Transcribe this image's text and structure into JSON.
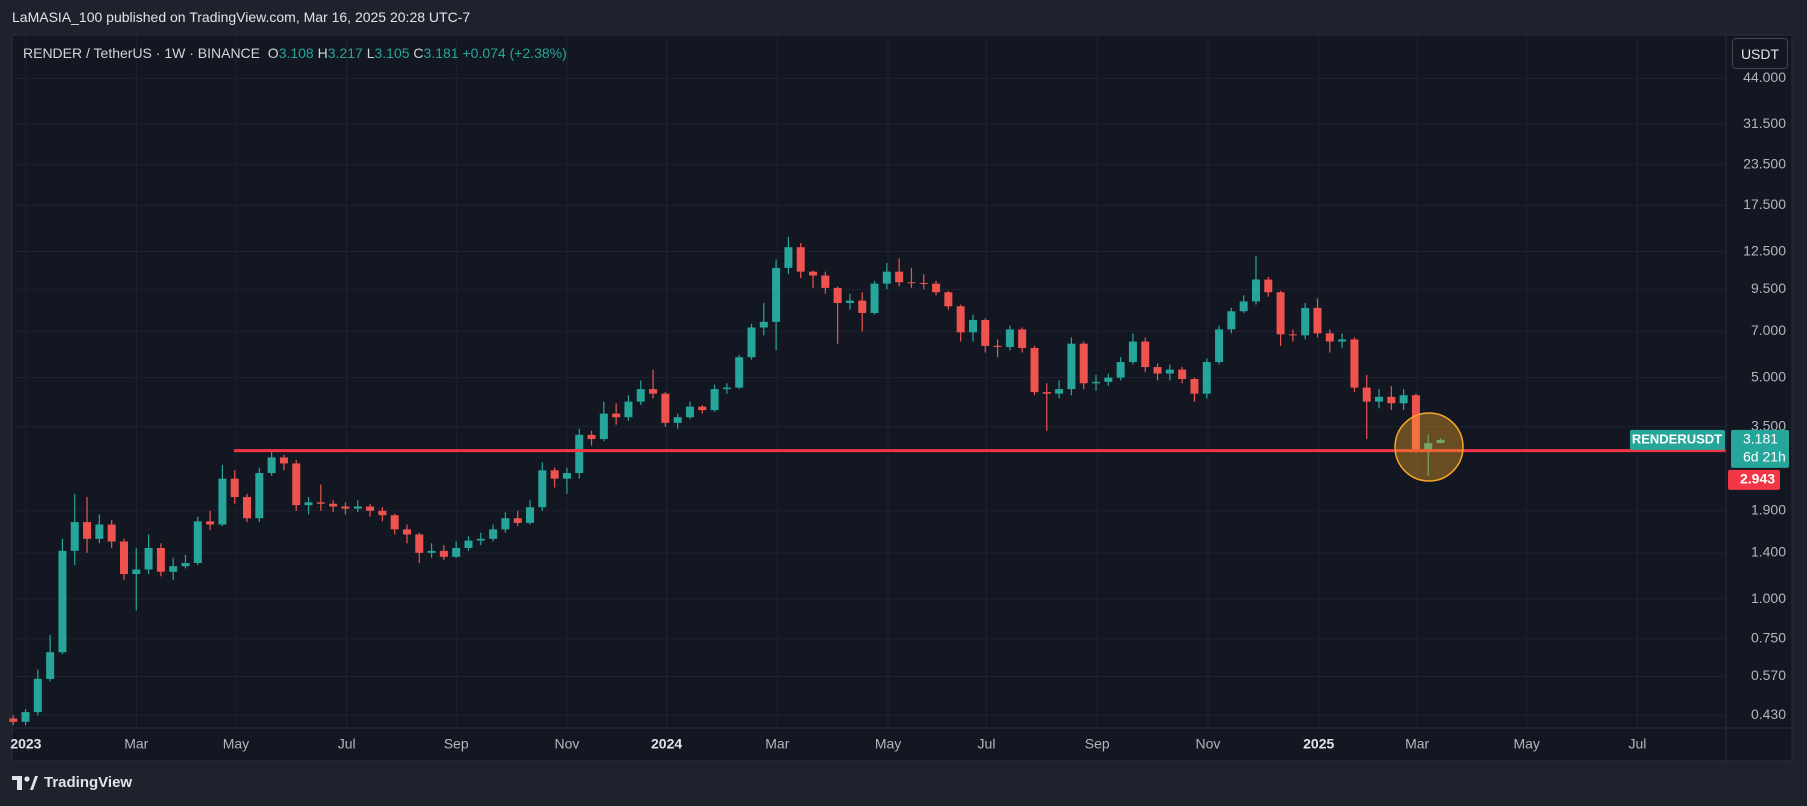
{
  "header": {
    "published": "LaMASIA_100 published on TradingView.com, Mar 16, 2025 20:28 UTC-7"
  },
  "footer": {
    "brand": "TradingView"
  },
  "chart_data": {
    "type": "candlestick",
    "symbol": "RENDER / TetherUS · 1W · BINANCE",
    "ohlc_labels": [
      "O",
      "H",
      "L",
      "C"
    ],
    "change": "+0.074 (+2.38%)",
    "countdown": "6d 21h",
    "currency": "USDT",
    "log_y": true,
    "grid": true,
    "ylim": [
      0.392,
      60.3
    ],
    "yticks": [
      {
        "value": 44,
        "label": "44.000"
      },
      {
        "value": 31.5,
        "label": "31.500"
      },
      {
        "value": 23.5,
        "label": "23.500"
      },
      {
        "value": 17.5,
        "label": "17.500"
      },
      {
        "value": 12.5,
        "label": "12.500"
      },
      {
        "value": 9.5,
        "label": "9.500"
      },
      {
        "value": 7,
        "label": "7.000"
      },
      {
        "value": 5,
        "label": "5.000"
      },
      {
        "value": 3.5,
        "label": "3.500"
      },
      {
        "value": 1.9,
        "label": "1.900"
      },
      {
        "value": 1.4,
        "label": "1.400"
      },
      {
        "value": 1,
        "label": "1.000"
      },
      {
        "value": 0.75,
        "label": "0.750"
      },
      {
        "value": 0.57,
        "label": "0.570"
      },
      {
        "value": 0.43,
        "label": "0.430"
      }
    ],
    "xlim": [
      -0.1,
      139.2
    ],
    "xticks": [
      {
        "value": 1.03,
        "label": "2023"
      },
      {
        "value": 10.0,
        "label": "Mar"
      },
      {
        "value": 18.1,
        "label": "May"
      },
      {
        "value": 27.1,
        "label": "Jul"
      },
      {
        "value": 36.0,
        "label": "Sep"
      },
      {
        "value": 45.0,
        "label": "Nov"
      },
      {
        "value": 53.1,
        "label": "2024"
      },
      {
        "value": 62.1,
        "label": "Mar"
      },
      {
        "value": 71.1,
        "label": "May"
      },
      {
        "value": 79.1,
        "label": "Jul"
      },
      {
        "value": 88.1,
        "label": "Sep"
      },
      {
        "value": 97.1,
        "label": "Nov"
      },
      {
        "value": 106.1,
        "label": "2025"
      },
      {
        "value": 114.1,
        "label": "Mar"
      },
      {
        "value": 123.0,
        "label": "May"
      },
      {
        "value": 132.0,
        "label": "Jul"
      }
    ],
    "hline": {
      "value": 2.943,
      "color": "#f23645"
    },
    "series": [
      {
        "name": "RENDERUSDT",
        "up_color": "#26a69a",
        "down_color": "#ef5350",
        "open": [
          0.42,
          0.41,
          0.44,
          0.56,
          0.68,
          1.42,
          1.75,
          1.55,
          1.72,
          1.52,
          1.2,
          1.24,
          1.45,
          1.22,
          1.27,
          1.3,
          1.76,
          1.72,
          2.4,
          2.1,
          1.8,
          2.5,
          2.8,
          2.68,
          1.98,
          2.02,
          2.0,
          1.96,
          1.93,
          1.96,
          1.9,
          1.84,
          1.66,
          1.6,
          1.4,
          1.42,
          1.36,
          1.45,
          1.53,
          1.55,
          1.66,
          1.8,
          1.74,
          1.95,
          2.55,
          2.4,
          2.5,
          3.3,
          3.2,
          3.85,
          3.75,
          4.2,
          4.6,
          4.45,
          3.6,
          3.75,
          4.05,
          3.95,
          4.6,
          4.65,
          5.8,
          7.2,
          7.5,
          11.1,
          12.9,
          10.8,
          10.5,
          9.6,
          8.6,
          8.75,
          8.0,
          9.9,
          10.8,
          10.0,
          9.95,
          9.9,
          9.3,
          8.4,
          6.95,
          7.6,
          6.3,
          6.25,
          7.1,
          6.2,
          4.5,
          4.45,
          4.6,
          6.4,
          4.8,
          4.85,
          5.0,
          5.6,
          6.5,
          5.4,
          5.15,
          5.3,
          4.95,
          4.45,
          5.6,
          7.1,
          8.1,
          8.7,
          10.2,
          9.3,
          6.85,
          6.8,
          8.3,
          6.9,
          6.5,
          6.6,
          4.65,
          4.2,
          4.35,
          4.15,
          4.4,
          2.97,
          3.108
        ],
        "high": [
          0.43,
          0.45,
          0.6,
          0.77,
          1.55,
          2.15,
          2.1,
          1.85,
          1.78,
          1.55,
          1.45,
          1.6,
          1.5,
          1.35,
          1.38,
          1.82,
          1.9,
          2.65,
          2.55,
          2.15,
          2.6,
          2.95,
          2.85,
          2.75,
          2.1,
          2.3,
          2.05,
          2.02,
          2.05,
          2.0,
          1.95,
          1.86,
          1.72,
          1.62,
          1.5,
          1.48,
          1.52,
          1.58,
          1.62,
          1.72,
          1.88,
          1.9,
          2.05,
          2.7,
          2.6,
          2.6,
          3.45,
          3.4,
          4.2,
          4.15,
          4.4,
          4.9,
          5.3,
          4.5,
          3.85,
          4.2,
          4.1,
          4.75,
          4.8,
          5.9,
          7.4,
          8.6,
          11.8,
          13.9,
          13.3,
          10.9,
          10.8,
          9.7,
          9.2,
          9.3,
          10.1,
          11.5,
          11.9,
          11.1,
          10.6,
          10.1,
          9.4,
          8.5,
          7.9,
          7.7,
          6.6,
          7.3,
          7.2,
          6.3,
          4.8,
          4.9,
          6.7,
          6.5,
          5.1,
          5.15,
          5.8,
          6.9,
          6.7,
          5.55,
          5.5,
          5.4,
          5.0,
          5.75,
          7.3,
          8.3,
          9.1,
          12.1,
          10.4,
          9.4,
          7.1,
          8.6,
          8.9,
          7.1,
          6.9,
          6.7,
          5.1,
          4.6,
          4.7,
          4.6,
          4.45,
          3.3,
          3.217
        ],
        "low": [
          0.4,
          0.4,
          0.43,
          0.55,
          0.67,
          1.28,
          1.4,
          1.5,
          1.45,
          1.15,
          0.92,
          1.2,
          1.18,
          1.15,
          1.25,
          1.28,
          1.65,
          1.7,
          2.0,
          1.75,
          1.75,
          2.45,
          2.55,
          1.9,
          1.85,
          1.9,
          1.88,
          1.85,
          1.88,
          1.82,
          1.76,
          1.6,
          1.5,
          1.3,
          1.35,
          1.33,
          1.35,
          1.42,
          1.48,
          1.52,
          1.62,
          1.7,
          1.72,
          1.9,
          2.25,
          2.15,
          2.4,
          3.05,
          3.15,
          3.55,
          3.65,
          4.1,
          4.3,
          3.5,
          3.45,
          3.7,
          3.85,
          3.9,
          4.45,
          4.6,
          5.7,
          6.8,
          6.1,
          10.6,
          10.3,
          9.6,
          9.2,
          6.4,
          8.2,
          7.0,
          7.9,
          9.5,
          9.7,
          9.6,
          9.5,
          9.1,
          8.2,
          6.5,
          6.5,
          6.0,
          5.8,
          6.1,
          6.0,
          4.4,
          3.4,
          4.3,
          4.4,
          4.6,
          4.55,
          4.7,
          4.9,
          5.5,
          5.2,
          4.9,
          4.9,
          4.8,
          4.2,
          4.3,
          5.5,
          6.9,
          8.0,
          8.5,
          9.0,
          6.3,
          6.5,
          6.6,
          6.7,
          6.0,
          6.2,
          4.5,
          3.2,
          4.0,
          3.95,
          3.95,
          2.9,
          2.45,
          3.105
        ],
        "close": [
          0.41,
          0.44,
          0.56,
          0.68,
          1.42,
          1.75,
          1.55,
          1.72,
          1.52,
          1.2,
          1.24,
          1.45,
          1.22,
          1.27,
          1.3,
          1.76,
          1.72,
          2.4,
          2.1,
          1.8,
          2.5,
          2.8,
          2.68,
          1.98,
          2.02,
          2.0,
          1.96,
          1.93,
          1.96,
          1.9,
          1.84,
          1.66,
          1.6,
          1.4,
          1.42,
          1.36,
          1.45,
          1.53,
          1.55,
          1.66,
          1.8,
          1.74,
          1.95,
          2.55,
          2.4,
          2.5,
          3.3,
          3.2,
          3.85,
          3.75,
          4.2,
          4.6,
          4.45,
          3.6,
          3.75,
          4.05,
          3.95,
          4.6,
          4.65,
          5.8,
          7.2,
          7.5,
          11.1,
          12.9,
          10.8,
          10.5,
          9.6,
          8.6,
          8.75,
          8.0,
          9.9,
          10.8,
          10.0,
          9.95,
          9.9,
          9.3,
          8.4,
          6.95,
          7.6,
          6.3,
          6.25,
          7.1,
          6.2,
          4.5,
          4.45,
          4.6,
          6.4,
          4.8,
          4.85,
          5.0,
          5.6,
          6.5,
          5.4,
          5.15,
          5.3,
          4.95,
          4.45,
          5.6,
          7.1,
          8.1,
          8.7,
          10.2,
          9.3,
          6.85,
          6.8,
          8.3,
          6.9,
          6.5,
          6.6,
          4.65,
          4.2,
          4.35,
          4.15,
          4.4,
          2.97,
          3.108,
          3.181
        ]
      }
    ]
  }
}
